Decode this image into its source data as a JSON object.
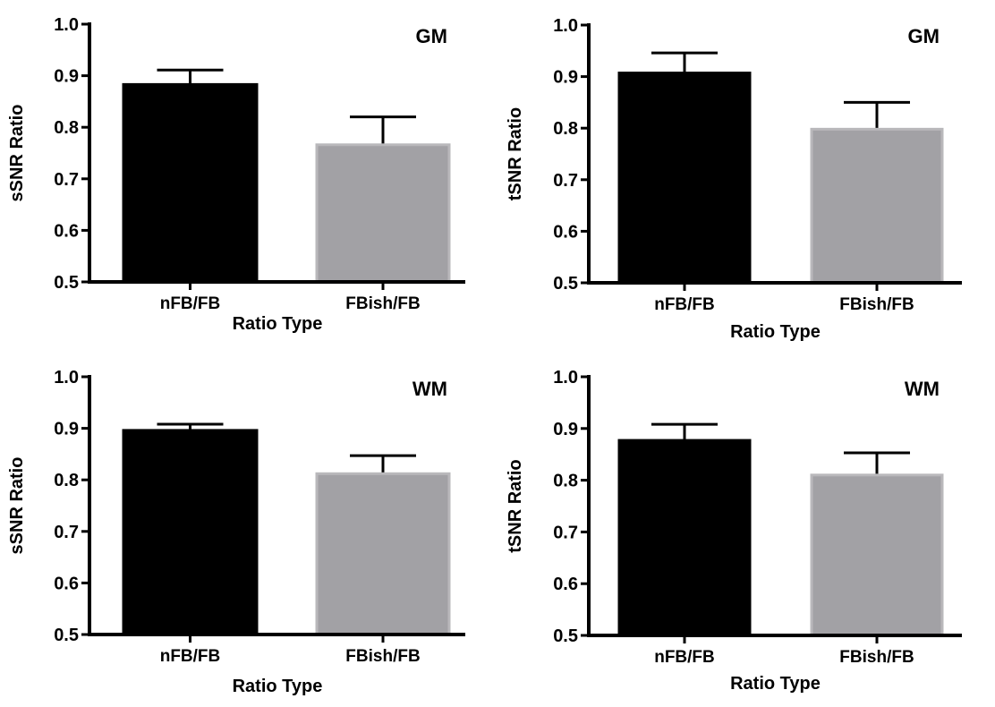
{
  "colors": {
    "nFB/FB": "#000000",
    "FBish/FB": "#a2a1a5",
    "FBish/FB_edge": "#b9b8bb",
    "axis": "#000000"
  },
  "chart_data": [
    {
      "type": "bar",
      "title": "GM",
      "xlabel": "Ratio Type",
      "ylabel": "sSNR Ratio",
      "ylim": [
        0.5,
        1.0
      ],
      "yticks": [
        "0.5",
        "0.6",
        "0.7",
        "0.8",
        "0.9",
        "1.0"
      ],
      "categories": [
        "nFB/FB",
        "FBish/FB"
      ],
      "values": [
        0.883,
        0.766
      ],
      "error_upper": [
        0.911,
        0.82
      ],
      "grid": false
    },
    {
      "type": "bar",
      "title": "GM",
      "xlabel": "Ratio Type",
      "ylabel": "tSNR Ratio",
      "ylim": [
        0.5,
        1.0
      ],
      "yticks": [
        "0.5",
        "0.6",
        "0.7",
        "0.8",
        "0.9",
        "1.0"
      ],
      "categories": [
        "nFB/FB",
        "FBish/FB"
      ],
      "values": [
        0.907,
        0.798
      ],
      "error_upper": [
        0.946,
        0.85
      ],
      "grid": false
    },
    {
      "type": "bar",
      "title": "WM",
      "xlabel": "Ratio Type",
      "ylabel": "sSNR Ratio",
      "ylim": [
        0.5,
        1.0
      ],
      "yticks": [
        "0.5",
        "0.6",
        "0.7",
        "0.8",
        "0.9",
        "1.0"
      ],
      "categories": [
        "nFB/FB",
        "FBish/FB"
      ],
      "values": [
        0.896,
        0.812
      ],
      "error_upper": [
        0.908,
        0.847
      ],
      "grid": false
    },
    {
      "type": "bar",
      "title": "WM",
      "xlabel": "Ratio Type",
      "ylabel": "tSNR Ratio",
      "ylim": [
        0.5,
        1.0
      ],
      "yticks": [
        "0.5",
        "0.6",
        "0.7",
        "0.8",
        "0.9",
        "1.0"
      ],
      "categories": [
        "nFB/FB",
        "FBish/FB"
      ],
      "values": [
        0.877,
        0.81
      ],
      "error_upper": [
        0.908,
        0.853
      ],
      "grid": false
    }
  ]
}
